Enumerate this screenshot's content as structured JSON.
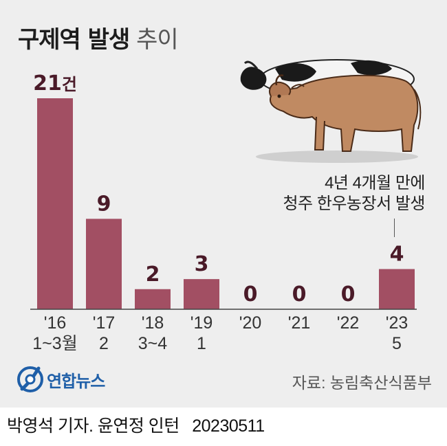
{
  "title": {
    "bold": "구제역 발생",
    "light": "추이"
  },
  "chart_data": {
    "type": "bar",
    "title": "구제역 발생 추이",
    "categories": [
      "'16 1~3월",
      "'17 2",
      "'18 3~4",
      "'19 1",
      "'20",
      "'21",
      "'22",
      "'23 5"
    ],
    "tick_lines": [
      [
        "'16",
        "1~3월"
      ],
      [
        "'17",
        "2"
      ],
      [
        "'18",
        "3~4"
      ],
      [
        "'19",
        "1"
      ],
      [
        "'20",
        ""
      ],
      [
        "'21",
        ""
      ],
      [
        "'22",
        ""
      ],
      [
        "'23",
        "5"
      ]
    ],
    "values": [
      21,
      9,
      2,
      3,
      0,
      0,
      0,
      4
    ],
    "value_labels": [
      "21",
      "9",
      "2",
      "3",
      "0",
      "0",
      "0",
      "4"
    ],
    "first_value_unit": "건",
    "ylim": [
      0,
      21
    ],
    "bar_color": "#a24f63",
    "label_color": "#4a1a28",
    "annotation": {
      "lines": [
        "4년 4개월 만에",
        "청주 한우농장서 발생"
      ]
    }
  },
  "source": "자료: 농림축산식품부",
  "logo": {
    "text": "연합뉴스"
  },
  "footer": {
    "byline": "박영석 기자. 윤연정 인턴",
    "date": "20230511"
  },
  "colors": {
    "background": "#eeeeee",
    "bar": "#a24f63",
    "logo": "#1f5fa8"
  },
  "icons": [
    "cow-holstein-illustration",
    "cow-hanwoo-illustration",
    "yonhap-logo-icon"
  ]
}
